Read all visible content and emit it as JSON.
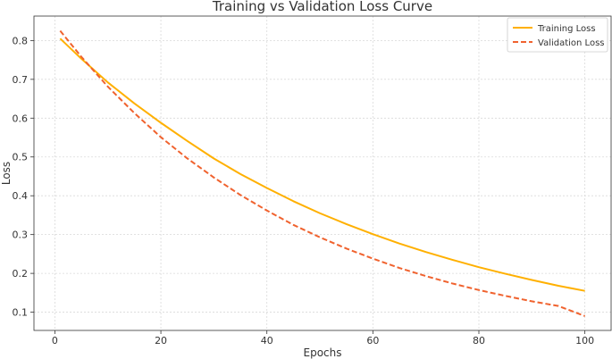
{
  "chart_data": {
    "type": "line",
    "title": "Training vs Validation Loss Curve",
    "xlabel": "Epochs",
    "ylabel": "Loss",
    "xlim": [
      -3.95,
      104.95
    ],
    "ylim": [
      0.053,
      0.863
    ],
    "x_ticks": [
      0,
      20,
      40,
      60,
      80,
      100
    ],
    "y_ticks": [
      0.1,
      0.2,
      0.3,
      0.4,
      0.5,
      0.6,
      0.7,
      0.8
    ],
    "grid": true,
    "legend_position": "top-right",
    "x": [
      1,
      5,
      10,
      15,
      20,
      25,
      30,
      35,
      40,
      45,
      50,
      55,
      60,
      65,
      70,
      75,
      80,
      85,
      90,
      95,
      100
    ],
    "series": [
      {
        "name": "Training Loss",
        "color": "#FFB000",
        "style": "solid",
        "values": [
          0.805,
          0.753,
          0.692,
          0.638,
          0.588,
          0.541,
          0.496,
          0.456,
          0.42,
          0.386,
          0.355,
          0.327,
          0.301,
          0.277,
          0.255,
          0.235,
          0.216,
          0.199,
          0.183,
          0.168,
          0.155
        ]
      },
      {
        "name": "Validation Loss",
        "color": "#F0622E",
        "style": "dashed",
        "values": [
          0.825,
          0.758,
          0.681,
          0.613,
          0.551,
          0.496,
          0.447,
          0.402,
          0.362,
          0.325,
          0.293,
          0.264,
          0.238,
          0.214,
          0.193,
          0.174,
          0.157,
          0.142,
          0.128,
          0.116,
          0.09
        ]
      }
    ]
  }
}
